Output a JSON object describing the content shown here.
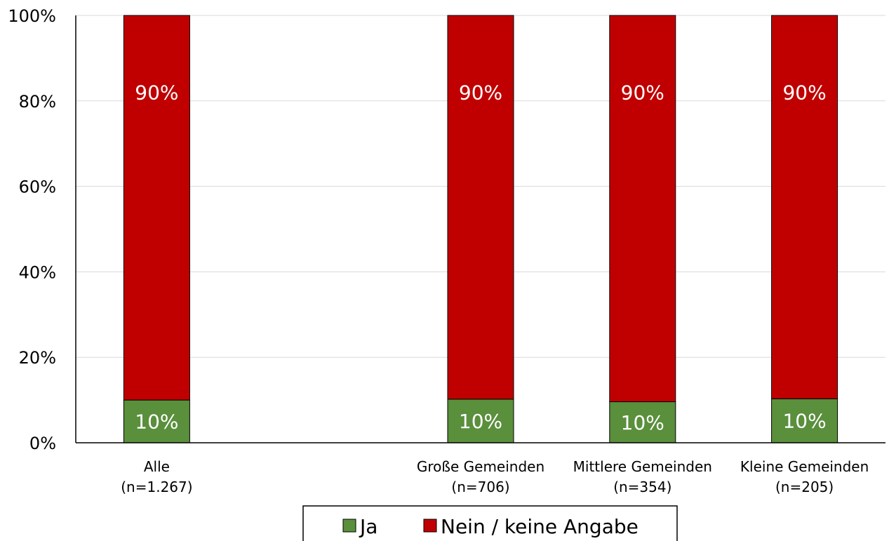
{
  "chart_data": {
    "type": "bar",
    "stacked": true,
    "categories": [
      [
        "Alle",
        "(n=1.267)"
      ],
      [
        "",
        ""
      ],
      [
        "Große Gemeinden",
        "(n=706)"
      ],
      [
        "Mittlere Gemeinden",
        "(n=354)"
      ],
      [
        "Kleine Gemeinden",
        "(n=205)"
      ]
    ],
    "series": [
      {
        "name": "Ja",
        "color": "#5a8f3c",
        "values": [
          10,
          null,
          10.2,
          9.6,
          10.3
        ],
        "labels": [
          "10%",
          "",
          "10%",
          "10%",
          "10%"
        ]
      },
      {
        "name": "Nein / keine Angabe",
        "color": "#c00000",
        "values": [
          90,
          null,
          89.8,
          90.4,
          89.7
        ],
        "labels": [
          "90%",
          "",
          "90%",
          "90%",
          "90%"
        ]
      }
    ],
    "ylim": [
      0,
      100
    ],
    "yticks": [
      0,
      20,
      40,
      60,
      80,
      100
    ],
    "ytick_labels": [
      "0%",
      "20%",
      "40%",
      "60%",
      "80%",
      "100%"
    ],
    "grid": true,
    "legend": "bottom"
  }
}
